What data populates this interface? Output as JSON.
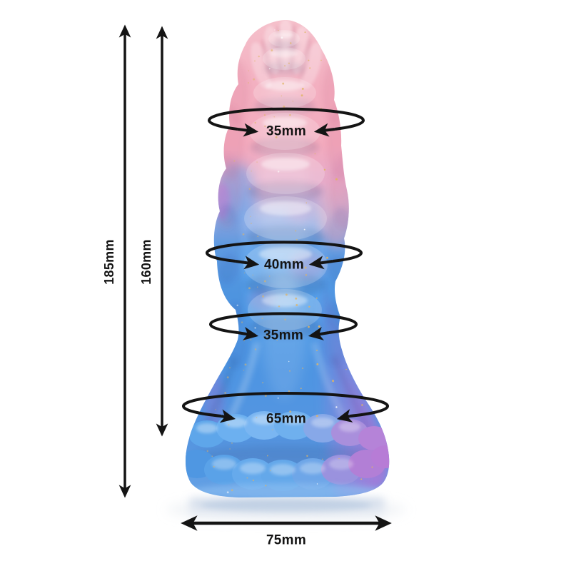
{
  "diagram": {
    "line_color": "#141414",
    "measurements": {
      "total_height": "185mm",
      "insertable_height": "160mm",
      "girth_rings": [
        {
          "label": "35mm"
        },
        {
          "label": "40mm"
        },
        {
          "label": "35mm"
        },
        {
          "label": "65mm"
        }
      ],
      "base_width": "75mm"
    },
    "product_colors": {
      "tip_pink": "#f3aebf",
      "body_blue": "#55a0e9",
      "accent_purple": "#b776d8",
      "glitter_gold": "#e0b464",
      "reflection": "#b9c6da"
    }
  }
}
